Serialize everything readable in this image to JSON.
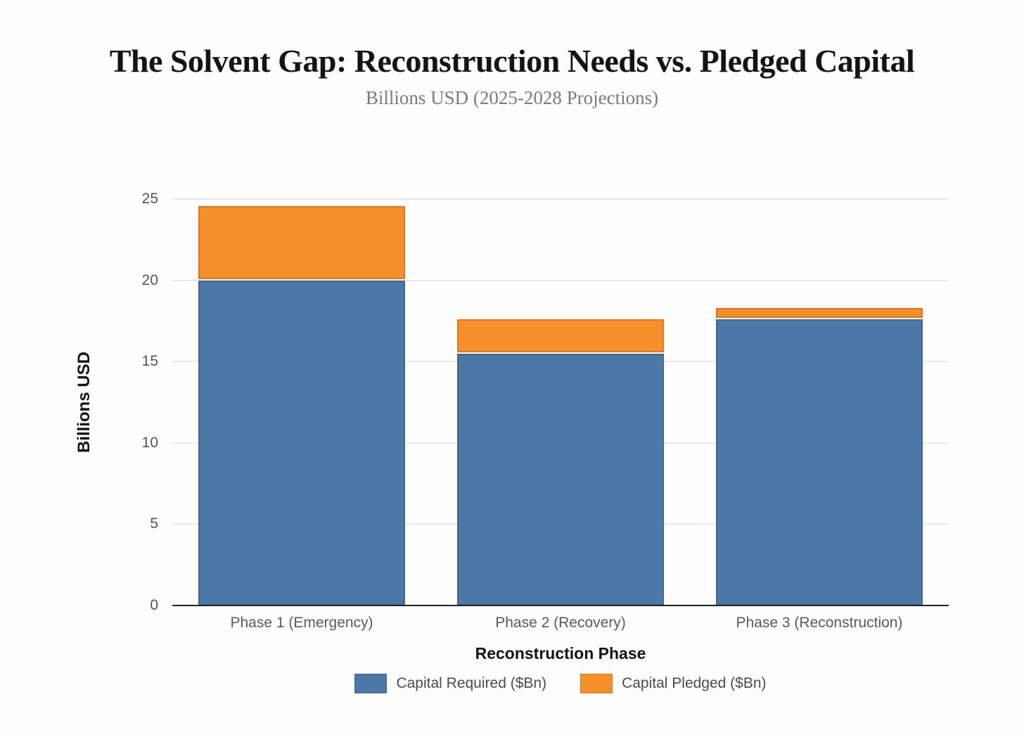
{
  "header": {
    "title": "The Solvent Gap: Reconstruction Needs vs. Pledged Capital",
    "subtitle": "Billions USD (2025-2028 Projections)"
  },
  "chart_data": {
    "type": "bar",
    "stacked": true,
    "title": "The Solvent Gap: Reconstruction Needs vs. Pledged Capital",
    "subtitle": "Billions USD (2025-2028 Projections)",
    "categories": [
      "Phase 1 (Emergency)",
      "Phase 2 (Recovery)",
      "Phase 3 (Reconstruction)"
    ],
    "series": [
      {
        "name": "Capital Required ($Bn)",
        "values": [
          20.0,
          15.5,
          17.6
        ],
        "color": "#4C78A8",
        "border_color": "#3E6792"
      },
      {
        "name": "Capital Pledged ($Bn)",
        "values": [
          4.5,
          2.0,
          0.6
        ],
        "color": "#F5902D",
        "border_color": "#E0761C"
      }
    ],
    "stack_totals": [
      24.5,
      17.5,
      18.2
    ],
    "xlabel": "Reconstruction Phase",
    "ylabel": "Billions USD",
    "ylim": [
      0,
      25
    ],
    "yticks": [
      0,
      5,
      10,
      15,
      20,
      25
    ],
    "grid": true,
    "legend_position": "bottom"
  },
  "theme": {
    "background": "#fefefe",
    "gridline_color": "#e7e9ef",
    "axis_line_color": "#222222",
    "title_color": "#141414",
    "subtitle_color": "#7b7b7b",
    "tick_label_color": "#545454",
    "category_label_color": "#5a5a5a",
    "legend_text_color": "#4b4b4b"
  }
}
